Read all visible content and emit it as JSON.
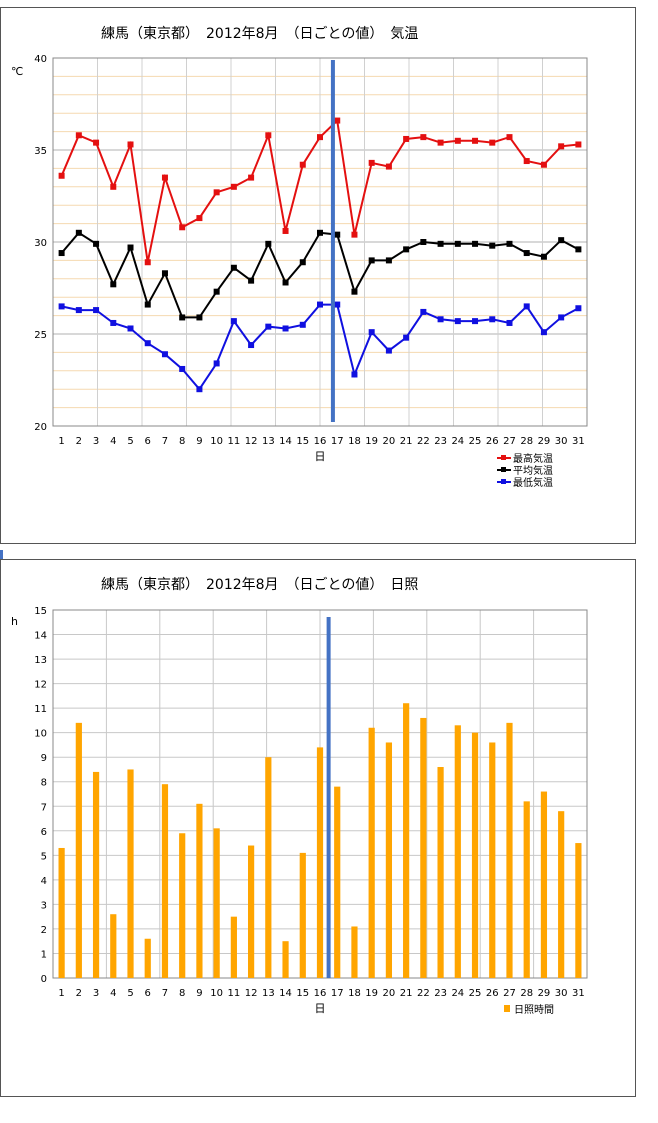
{
  "chart_data": [
    {
      "type": "line",
      "title": "練馬（東京都）　2012年8月　（日ごとの値）　気温",
      "xlabel": "日",
      "ylabel": "℃",
      "ylim": [
        20,
        40
      ],
      "yticks": [
        "20",
        "25",
        "30",
        "35",
        "40"
      ],
      "legend_position": "bottom-right",
      "categories": [
        "1",
        "2",
        "3",
        "4",
        "5",
        "6",
        "7",
        "8",
        "9",
        "10",
        "11",
        "12",
        "13",
        "14",
        "15",
        "16",
        "17",
        "18",
        "19",
        "20",
        "21",
        "22",
        "23",
        "24",
        "25",
        "26",
        "27",
        "28",
        "29",
        "30",
        "31"
      ],
      "series": [
        {
          "name": "最高気温",
          "color": "#e41010",
          "values": [
            33.6,
            35.8,
            35.4,
            33.0,
            35.3,
            28.9,
            33.5,
            30.8,
            31.3,
            32.7,
            33.0,
            33.5,
            35.8,
            30.6,
            34.2,
            35.7,
            36.6,
            30.4,
            34.3,
            34.1,
            35.6,
            35.7,
            35.4,
            35.5,
            35.5,
            35.4,
            35.7,
            34.4,
            34.2,
            35.2,
            35.3
          ]
        },
        {
          "name": "平均気温",
          "color": "#000000",
          "values": [
            29.4,
            30.5,
            29.9,
            27.7,
            29.7,
            26.6,
            28.3,
            25.9,
            25.9,
            27.3,
            28.6,
            27.9,
            29.9,
            27.8,
            28.9,
            30.5,
            30.4,
            27.3,
            29.0,
            29.0,
            29.6,
            30.0,
            29.9,
            29.9,
            29.9,
            29.8,
            29.9,
            29.4,
            29.2,
            30.1,
            29.6
          ]
        },
        {
          "name": "最低気温",
          "color": "#1010e0",
          "values": [
            26.5,
            26.3,
            26.3,
            25.6,
            25.3,
            24.5,
            23.9,
            23.1,
            22.0,
            23.4,
            25.7,
            24.4,
            25.4,
            25.3,
            25.5,
            26.6,
            26.6,
            22.8,
            25.1,
            24.1,
            24.8,
            26.2,
            25.8,
            25.7,
            25.7,
            25.8,
            25.6,
            26.5,
            25.1,
            25.9,
            26.4
          ]
        }
      ],
      "marker_line_day": 17,
      "marker_line_color": "#4472c4",
      "grid": true
    },
    {
      "type": "bar",
      "title": "練馬（東京都）　2012年8月　（日ごとの値）　日照",
      "xlabel": "日",
      "ylabel": "h",
      "ylim": [
        0,
        15
      ],
      "yticks": [
        "0",
        "1",
        "2",
        "3",
        "4",
        "5",
        "6",
        "7",
        "8",
        "9",
        "10",
        "11",
        "12",
        "13",
        "14",
        "15"
      ],
      "legend_position": "bottom-right",
      "categories": [
        "1",
        "2",
        "3",
        "4",
        "5",
        "6",
        "7",
        "8",
        "9",
        "10",
        "11",
        "12",
        "13",
        "14",
        "15",
        "16",
        "17",
        "18",
        "19",
        "20",
        "21",
        "22",
        "23",
        "24",
        "25",
        "26",
        "27",
        "28",
        "29",
        "30",
        "31"
      ],
      "series": [
        {
          "name": "日照時間",
          "color": "#ffa500",
          "values": [
            5.3,
            10.4,
            8.4,
            2.6,
            8.5,
            1.6,
            7.9,
            5.9,
            7.1,
            6.1,
            2.5,
            5.4,
            9.0,
            1.5,
            5.1,
            9.4,
            7.8,
            2.1,
            10.2,
            9.6,
            11.2,
            10.6,
            8.6,
            10.3,
            10.0,
            9.6,
            10.4,
            7.2,
            7.6,
            6.8,
            5.5
          ]
        }
      ],
      "marker_line_day": 17,
      "marker_line_color": "#4472c4",
      "grid": true
    }
  ]
}
